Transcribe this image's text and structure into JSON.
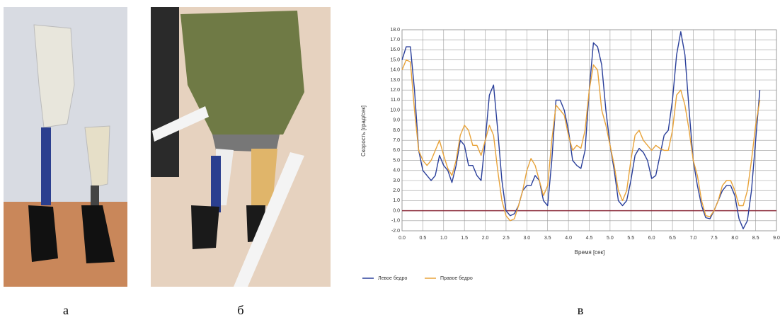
{
  "panels": {
    "a": "а",
    "b": "б",
    "c": "в"
  },
  "chart_data": {
    "type": "line",
    "x_label": "Время [сек]",
    "y_label": "Скорость [град/сек]",
    "x": [
      0.0,
      0.1,
      0.2,
      0.3,
      0.4,
      0.5,
      0.6,
      0.7,
      0.8,
      0.9,
      1.0,
      1.1,
      1.2,
      1.3,
      1.4,
      1.5,
      1.6,
      1.7,
      1.8,
      1.9,
      2.0,
      2.1,
      2.2,
      2.3,
      2.4,
      2.5,
      2.6,
      2.7,
      2.8,
      2.9,
      3.0,
      3.1,
      3.2,
      3.3,
      3.4,
      3.5,
      3.6,
      3.7,
      3.8,
      3.9,
      4.0,
      4.1,
      4.2,
      4.3,
      4.4,
      4.5,
      4.6,
      4.7,
      4.8,
      4.9,
      5.0,
      5.1,
      5.2,
      5.3,
      5.4,
      5.5,
      5.6,
      5.7,
      5.8,
      5.9,
      6.0,
      6.1,
      6.2,
      6.3,
      6.4,
      6.5,
      6.6,
      6.7,
      6.8,
      6.9,
      7.0,
      7.1,
      7.2,
      7.3,
      7.4,
      7.5,
      7.6,
      7.7,
      7.8,
      7.9,
      8.0,
      8.1,
      8.2,
      8.3,
      8.4,
      8.5,
      8.6
    ],
    "series": [
      {
        "name": "Левое бедро",
        "color": "#2a3f9a",
        "values": [
          15.0,
          16.3,
          16.3,
          12,
          6,
          4,
          3.5,
          3.0,
          3.5,
          5.5,
          4.5,
          4.0,
          2.8,
          4.5,
          7.0,
          6.5,
          4.5,
          4.5,
          3.5,
          3.0,
          7.0,
          11.5,
          12.5,
          8,
          3,
          0,
          -0.5,
          -0.3,
          0.5,
          2.0,
          2.5,
          2.5,
          3.5,
          3.0,
          1.0,
          0.5,
          5,
          11,
          11.0,
          10,
          8,
          5,
          4.5,
          4.2,
          6,
          12,
          16.7,
          16.3,
          14.5,
          10,
          6.5,
          4.0,
          1.0,
          0.5,
          1.0,
          3.0,
          5.5,
          6.2,
          5.8,
          5.0,
          3.2,
          3.5,
          5.5,
          7.5,
          8.0,
          11,
          15.5,
          17.8,
          15.5,
          10,
          5,
          2.5,
          0.5,
          -0.7,
          -0.8,
          0,
          1.0,
          2.0,
          2.5,
          2.5,
          1.5,
          -0.8,
          -1.8,
          -1.0,
          2,
          7,
          12
        ]
      },
      {
        "name": "Правое бедро",
        "color": "#e8a33a",
        "values": [
          14,
          15,
          14.8,
          10,
          6,
          5,
          4.5,
          5.0,
          6.0,
          7.0,
          5.5,
          4.2,
          3.5,
          5,
          7.5,
          8.5,
          8.0,
          6.5,
          6.5,
          5.5,
          7.0,
          8.5,
          7.5,
          4,
          1,
          -0.5,
          -1.0,
          -0.8,
          0.5,
          2.0,
          4.0,
          5.2,
          4.5,
          3.0,
          1.5,
          2.5,
          7,
          10.5,
          10.0,
          9.5,
          7.5,
          6.0,
          6.5,
          6.2,
          8,
          12,
          14.5,
          14.0,
          10,
          8.5,
          6.5,
          4.5,
          2.0,
          1.0,
          2.0,
          5.0,
          7.5,
          8.0,
          7.0,
          6.5,
          6.0,
          6.5,
          6.2,
          6.0,
          6.0,
          8,
          11.5,
          12.0,
          10.5,
          8,
          5,
          3.5,
          1.0,
          -0.5,
          -0.6,
          0,
          1.0,
          2.5,
          3.0,
          3.0,
          2.0,
          0.5,
          0.5,
          2,
          5,
          8.5,
          11
        ]
      }
    ],
    "xlim": [
      0,
      9
    ],
    "ylim": [
      -2,
      18
    ],
    "xticks": [
      {
        "value": 0,
        "label": "0.0"
      },
      {
        "value": 0.5,
        "label": "0.5"
      },
      {
        "value": 1,
        "label": "1.0"
      },
      {
        "value": 1.5,
        "label": "1.5"
      },
      {
        "value": 2,
        "label": "2.0"
      },
      {
        "value": 2.5,
        "label": "2.5"
      },
      {
        "value": 3,
        "label": "3.0"
      },
      {
        "value": 3.5,
        "label": "3.5"
      },
      {
        "value": 4,
        "label": "4.0"
      },
      {
        "value": 4.5,
        "label": "4.5"
      },
      {
        "value": 5,
        "label": "5.0"
      },
      {
        "value": 5.5,
        "label": "5.5"
      },
      {
        "value": 6,
        "label": "6.0"
      },
      {
        "value": 6.5,
        "label": "6.5"
      },
      {
        "value": 7,
        "label": "7.0"
      },
      {
        "value": 7.5,
        "label": "7.5"
      },
      {
        "value": 8,
        "label": "8.0"
      },
      {
        "value": 8.5,
        "label": "8.5"
      },
      {
        "value": 9,
        "label": "9.0"
      }
    ],
    "yticks": [
      {
        "value": -2,
        "label": "-2.0"
      },
      {
        "value": -1,
        "label": "-1.0"
      },
      {
        "value": 0,
        "label": "0.0"
      },
      {
        "value": 1,
        "label": "1.0"
      },
      {
        "value": 2,
        "label": "2.0"
      },
      {
        "value": 3,
        "label": "3.0"
      },
      {
        "value": 4,
        "label": "4.0"
      },
      {
        "value": 5,
        "label": "5.0"
      },
      {
        "value": 6,
        "label": "6.0"
      },
      {
        "value": 7,
        "label": "7.0"
      },
      {
        "value": 8,
        "label": "8.0"
      },
      {
        "value": 9,
        "label": "9.0"
      },
      {
        "value": 10,
        "label": "10.0"
      },
      {
        "value": 11,
        "label": "11.0"
      },
      {
        "value": 12,
        "label": "12.0"
      },
      {
        "value": 13,
        "label": "13.0"
      },
      {
        "value": 14,
        "label": "14.0"
      },
      {
        "value": 15,
        "label": "15.0"
      },
      {
        "value": 16,
        "label": "16.0"
      },
      {
        "value": 17,
        "label": "17.0"
      },
      {
        "value": 18,
        "label": "18.0"
      }
    ],
    "grid": true,
    "zero_line_color": "#8b2b3a"
  }
}
